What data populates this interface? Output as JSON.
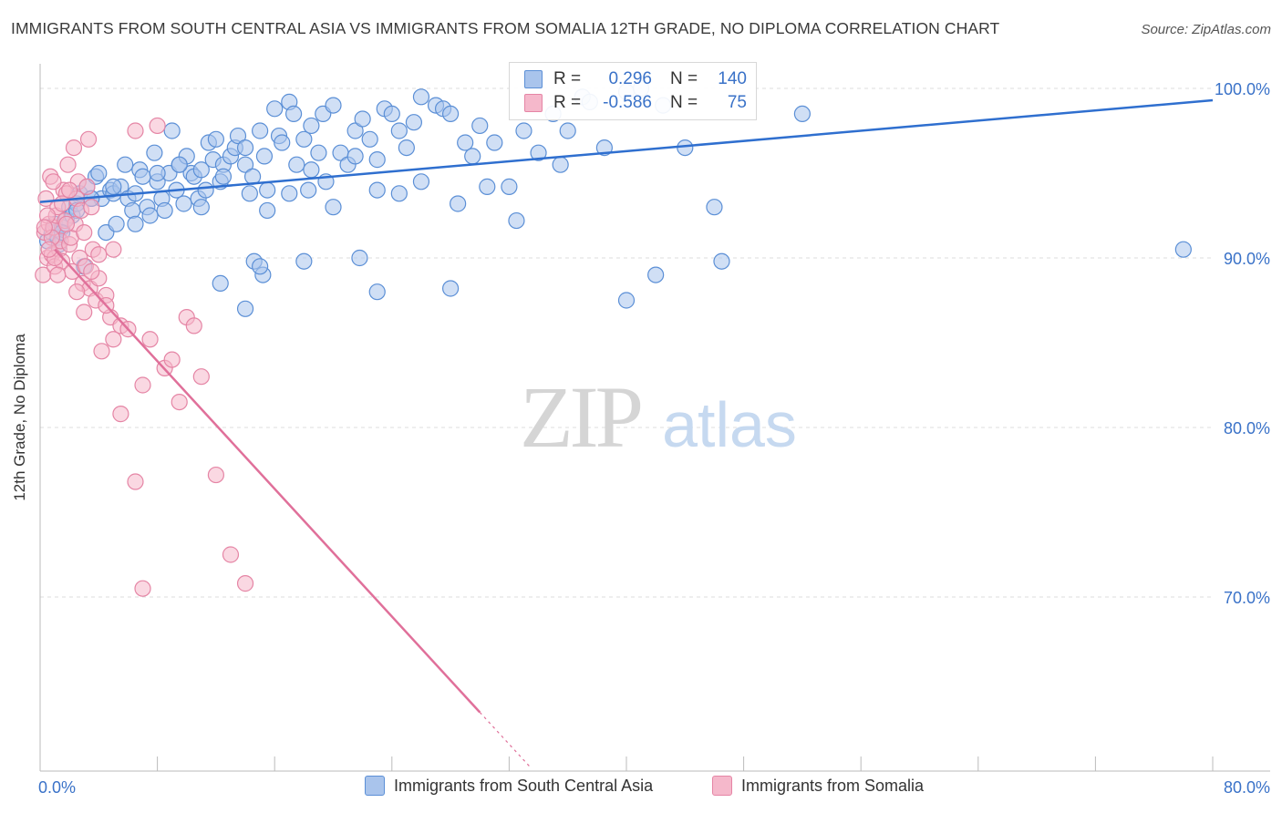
{
  "title": "IMMIGRANTS FROM SOUTH CENTRAL ASIA VS IMMIGRANTS FROM SOMALIA 12TH GRADE, NO DIPLOMA CORRELATION CHART",
  "source": "Source: ZipAtlas.com",
  "watermark": {
    "zip": "ZIP",
    "atlas": "atlas"
  },
  "legend": {
    "rows": [
      {
        "r_label": "R =",
        "r_value": "0.296",
        "n_label": "N =",
        "n_value": "140"
      },
      {
        "r_label": "R =",
        "r_value": "-0.586",
        "n_label": "N =",
        "n_value": "75"
      }
    ]
  },
  "colors": {
    "blue_fill": "#a9c4ec",
    "blue_stroke": "#5b8fd6",
    "blue_line": "#2f6fcf",
    "pink_fill": "#f5b8cb",
    "pink_stroke": "#e585a5",
    "pink_line": "#e0709a",
    "axis_text": "#3a72c8",
    "grid": "#dddddd"
  },
  "chart_data": {
    "type": "scatter",
    "title": "IMMIGRANTS FROM SOUTH CENTRAL ASIA VS IMMIGRANTS FROM SOMALIA 12TH GRADE, NO DIPLOMA CORRELATION CHART",
    "xlabel": "",
    "ylabel": "12th Grade, No Diploma",
    "xlim": [
      0,
      80
    ],
    "ylim": [
      60,
      100.5
    ],
    "x_tick_labels": [
      "0.0%",
      "80.0%"
    ],
    "y_ticks": [
      70,
      80,
      90,
      100
    ],
    "y_tick_labels": [
      "70.0%",
      "80.0%",
      "90.0%",
      "100.0%"
    ],
    "grid": true,
    "legend_position": "top-center",
    "series": [
      {
        "name": "Immigrants from South Central Asia",
        "color": "#5b8fd6",
        "R": 0.296,
        "N": 140,
        "trend": {
          "x0": 0,
          "y0": 93.3,
          "x1": 80,
          "y1": 99.3
        },
        "x": [
          0.5,
          0.8,
          1.0,
          1.2,
          1.3,
          1.5,
          1.8,
          2.0,
          2.2,
          2.5,
          2.7,
          3.0,
          3.2,
          3.5,
          3.8,
          4.0,
          4.2,
          4.5,
          4.8,
          5.0,
          5.2,
          5.5,
          5.8,
          6.0,
          6.3,
          6.5,
          6.8,
          7.0,
          7.3,
          7.5,
          7.8,
          8.0,
          8.3,
          8.5,
          8.8,
          9.0,
          9.3,
          9.5,
          9.8,
          10.0,
          10.3,
          10.5,
          10.8,
          11.0,
          11.3,
          11.5,
          11.8,
          12.0,
          12.3,
          12.5,
          13.0,
          13.3,
          13.5,
          14.0,
          14.3,
          14.5,
          15.0,
          15.3,
          15.5,
          16.0,
          16.3,
          16.5,
          17.0,
          17.3,
          17.5,
          18.0,
          18.3,
          18.5,
          19.0,
          19.3,
          19.5,
          20.0,
          20.5,
          21.0,
          21.5,
          22.0,
          22.5,
          23.0,
          23.5,
          24.0,
          24.5,
          25.0,
          25.5,
          26.0,
          27.0,
          27.5,
          28.0,
          29.0,
          29.5,
          30.0,
          31.0,
          32.0,
          33.0,
          34.0,
          35.0,
          36.0,
          37.0,
          37.5,
          1.5,
          2.5,
          3.5,
          5.0,
          6.5,
          8.0,
          9.5,
          11.0,
          12.5,
          14.0,
          15.5,
          17.0,
          18.5,
          20.0,
          21.5,
          23.0,
          24.5,
          26.0,
          28.5,
          30.5,
          32.5,
          35.5,
          38.5,
          40.0,
          41.0,
          42.5,
          44.0,
          46.0,
          52.0,
          78.0,
          12.3,
          14.0,
          15.2,
          18.0,
          21.8,
          23.0,
          28.0,
          40.0,
          42.0,
          46.5,
          14.6,
          15.0
        ],
        "y": [
          91.0,
          91.5,
          92.0,
          91.2,
          90.8,
          91.8,
          92.3,
          93.0,
          92.5,
          93.2,
          93.8,
          89.5,
          94.2,
          93.5,
          94.8,
          95.0,
          93.5,
          91.5,
          94.0,
          93.8,
          92.0,
          94.2,
          95.5,
          93.5,
          92.8,
          92.0,
          95.2,
          94.8,
          93.0,
          92.5,
          96.2,
          94.5,
          93.5,
          92.8,
          95.0,
          97.5,
          94.0,
          95.5,
          93.2,
          96.0,
          95.0,
          94.8,
          93.5,
          95.2,
          94.0,
          96.8,
          95.8,
          97.0,
          94.5,
          95.5,
          96.0,
          96.5,
          97.2,
          95.5,
          93.8,
          94.8,
          97.5,
          96.0,
          92.8,
          98.8,
          97.2,
          96.8,
          99.2,
          98.5,
          95.5,
          97.0,
          94.0,
          97.8,
          96.2,
          98.5,
          94.5,
          99.0,
          96.2,
          95.5,
          97.5,
          98.2,
          97.0,
          95.8,
          98.8,
          98.5,
          97.5,
          96.5,
          98.0,
          99.5,
          99.0,
          98.8,
          98.5,
          96.8,
          96.0,
          97.8,
          96.8,
          94.2,
          97.5,
          96.2,
          98.5,
          97.5,
          99.5,
          99.2,
          91.5,
          92.8,
          93.5,
          94.2,
          93.8,
          95.0,
          95.5,
          93.0,
          94.8,
          96.5,
          94.0,
          93.8,
          95.2,
          93.0,
          96.0,
          94.0,
          93.8,
          94.5,
          93.2,
          94.2,
          92.2,
          95.5,
          96.5,
          99.8,
          100.0,
          99.0,
          96.5,
          93.0,
          98.5,
          90.5,
          88.5,
          87.0,
          89.0,
          89.8,
          90.0,
          88.0,
          88.2,
          87.5,
          89.0,
          89.8,
          89.8,
          89.5
        ]
      },
      {
        "name": "Immigrants from Somalia",
        "color": "#e585a5",
        "R": -0.586,
        "N": 75,
        "trend": {
          "x0": 1.0,
          "y0": 90.5,
          "x1": 30.0,
          "y1": 63.2
        },
        "x": [
          0.2,
          0.3,
          0.4,
          0.5,
          0.6,
          0.7,
          0.8,
          0.9,
          1.0,
          1.1,
          1.2,
          1.3,
          1.4,
          1.5,
          1.6,
          1.7,
          1.8,
          1.9,
          2.0,
          2.1,
          2.2,
          2.3,
          2.4,
          2.5,
          2.6,
          2.7,
          2.8,
          2.9,
          3.0,
          3.1,
          3.2,
          3.3,
          3.4,
          3.5,
          3.6,
          3.8,
          4.0,
          4.2,
          4.5,
          4.8,
          5.0,
          5.5,
          6.0,
          6.5,
          7.0,
          7.5,
          8.0,
          8.5,
          9.0,
          9.5,
          10.0,
          10.5,
          11.0,
          12.0,
          13.0,
          14.0,
          0.5,
          0.8,
          1.0,
          1.5,
          2.0,
          2.5,
          3.0,
          3.5,
          4.0,
          4.5,
          5.0,
          5.5,
          6.5,
          7.0,
          0.3,
          0.6,
          0.9,
          1.2,
          1.8
        ],
        "y": [
          89.0,
          91.5,
          93.5,
          90.0,
          92.0,
          94.8,
          90.2,
          91.8,
          89.5,
          92.5,
          93.0,
          90.5,
          91.0,
          89.8,
          94.0,
          92.2,
          93.8,
          95.5,
          90.8,
          91.2,
          89.2,
          96.5,
          92.0,
          93.5,
          94.5,
          90.0,
          92.8,
          88.5,
          91.5,
          89.5,
          94.2,
          97.0,
          88.2,
          93.0,
          90.5,
          87.5,
          88.8,
          84.5,
          87.8,
          86.5,
          85.2,
          86.0,
          85.8,
          97.5,
          82.5,
          85.2,
          97.8,
          83.5,
          84.0,
          81.5,
          86.5,
          86.0,
          83.0,
          77.2,
          72.5,
          70.8,
          92.5,
          91.2,
          90.0,
          93.2,
          94.0,
          88.0,
          86.8,
          89.2,
          90.2,
          87.2,
          90.5,
          80.8,
          76.8,
          70.5,
          91.8,
          90.5,
          94.5,
          89.0,
          92.0
        ]
      }
    ]
  },
  "bottom_legend": [
    {
      "label": "Immigrants from South Central Asia"
    },
    {
      "label": "Immigrants from Somalia"
    }
  ]
}
